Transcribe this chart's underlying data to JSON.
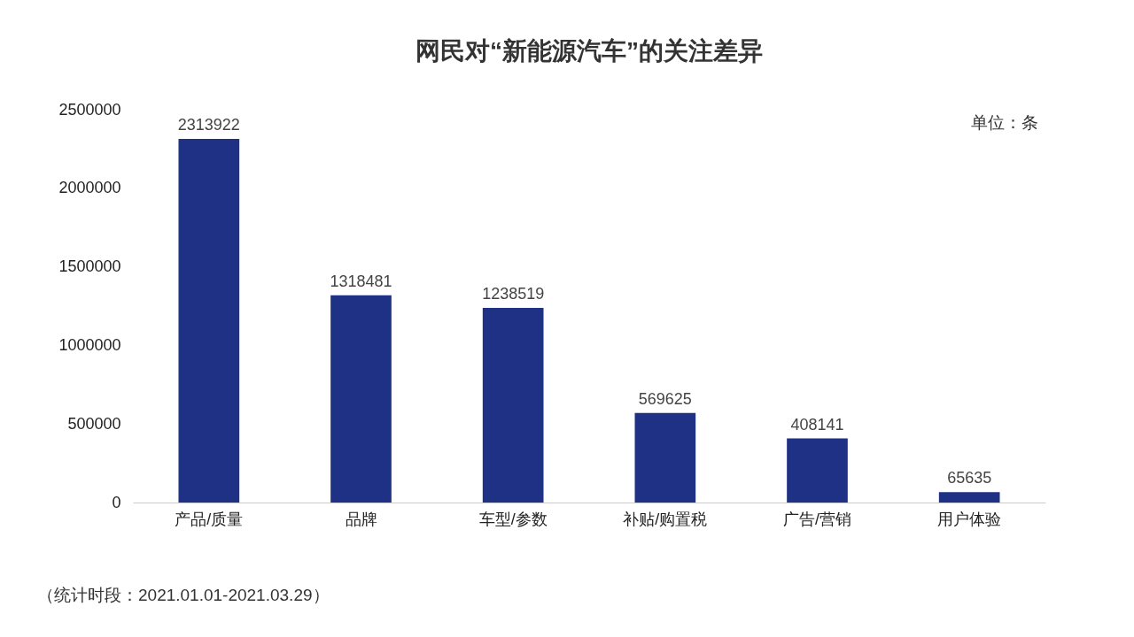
{
  "chart_data": {
    "type": "bar",
    "title": "网民对“新能源汽车”的关注差异",
    "categories": [
      "产品/质量",
      "品牌",
      "车型/参数",
      "补贴/购置税",
      "广告/营销",
      "用户体验"
    ],
    "values": [
      2313922,
      1318481,
      1238519,
      569625,
      408141,
      65635
    ],
    "color": "#1f3185",
    "ylim": [
      0,
      2500000
    ],
    "yticks": [
      0,
      500000,
      1000000,
      1500000,
      2000000,
      2500000
    ],
    "grid": false,
    "data_labels": true,
    "annotations": [
      "单位：条",
      "（统计时段：2021.01.01-2021.03.29）"
    ]
  }
}
